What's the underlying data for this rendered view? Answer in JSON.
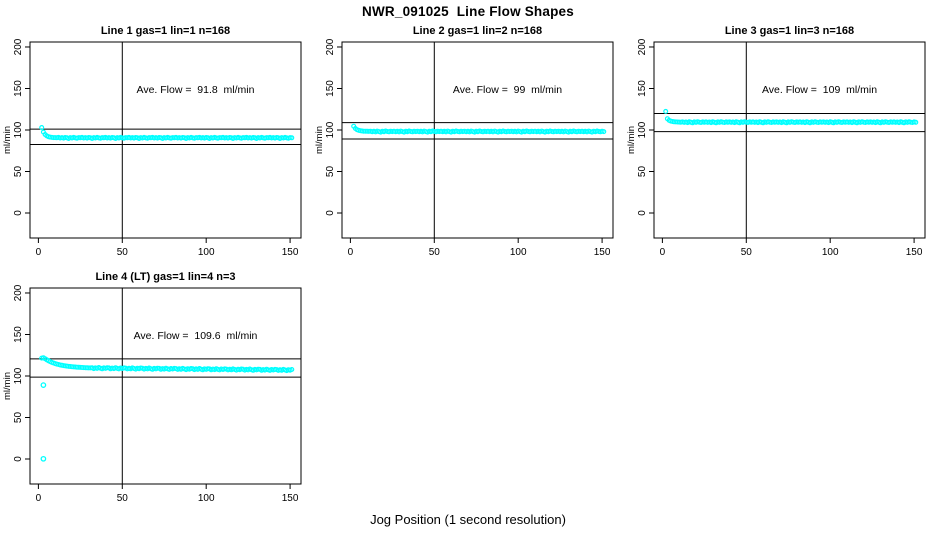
{
  "figure": {
    "title": "NWR_091025  Line Flow Shapes",
    "xlabel": "Jog Position (1 second resolution)"
  },
  "colors": {
    "points": "#00FFFF",
    "axis": "#000000",
    "background": "#FFFFFF"
  },
  "chart_data": [
    {
      "type": "scatter",
      "title": "Line 1 gas=1 lin=1 n=168",
      "annotation": "Ave. Flow =  91.8  ml/min",
      "ave_flow_ml_min": 91.8,
      "n": 168,
      "ylabel": "ml/min",
      "xticks": [
        0,
        50,
        100,
        150
      ],
      "yticks": [
        0,
        50,
        100,
        150,
        200
      ],
      "xlim": [
        -5,
        156.5
      ],
      "ylim": [
        -30.1,
        206
      ],
      "vline_x": 50,
      "hlines": [
        101.0,
        82.6
      ],
      "points": {
        "x_start": 2,
        "x_step": 1,
        "values": [
          103.0,
          97.6,
          94.6,
          92.9,
          91.9,
          91.4,
          91.1,
          90.9,
          90.8,
          90.7,
          91.1,
          90.3,
          90.8,
          90.2,
          91.0,
          90.6,
          89.8,
          90.9,
          90.4,
          91.1,
          90.5,
          90.1,
          90.8,
          90.6,
          91.1,
          90.3,
          90.8,
          90.2,
          91.0,
          90.6,
          89.8,
          90.9,
          90.4,
          91.1,
          90.5,
          90.1,
          90.8,
          90.6,
          91.1,
          90.3,
          90.8,
          90.2,
          91.0,
          90.6,
          89.8,
          90.9,
          90.4,
          91.1,
          90.5,
          90.1,
          90.8,
          90.6,
          91.1,
          90.3,
          90.8,
          90.2,
          91.0,
          90.6,
          89.8,
          90.9,
          90.4,
          91.1,
          90.5,
          90.1,
          90.8,
          90.6,
          91.1,
          90.3,
          90.8,
          90.2,
          91.0,
          90.6,
          89.8,
          90.9,
          90.4,
          91.1,
          90.5,
          90.1,
          90.8,
          90.6,
          91.1,
          90.3,
          90.8,
          90.2,
          91.0,
          90.6,
          89.8,
          90.9,
          90.4,
          91.1,
          90.5,
          90.1,
          90.8,
          90.6,
          91.1,
          90.3,
          90.8,
          90.2,
          91.0,
          90.6,
          89.8,
          90.9,
          90.4,
          91.1,
          90.5,
          90.1,
          90.8,
          90.6,
          91.1,
          90.3,
          90.8,
          90.2,
          91.0,
          90.6,
          89.8,
          90.9,
          90.4,
          91.1,
          90.5,
          90.1,
          90.8,
          90.6,
          91.1,
          90.3,
          90.8,
          90.2,
          91.0,
          90.6,
          89.8,
          90.9,
          90.4,
          91.1,
          90.5,
          90.1,
          90.8,
          90.6,
          91.1,
          90.3,
          90.8,
          90.2,
          91.0,
          90.6,
          89.8,
          90.9,
          90.4,
          91.1,
          90.5,
          90.1,
          90.8,
          90.6
        ]
      },
      "outliers": []
    },
    {
      "type": "scatter",
      "title": "Line 2 gas=1 lin=2 n=168",
      "annotation": "Ave. Flow =  99  ml/min",
      "ave_flow_ml_min": 99,
      "n": 168,
      "ylabel": "ml/min",
      "xticks": [
        0,
        50,
        100,
        150
      ],
      "yticks": [
        0,
        50,
        100,
        150,
        200
      ],
      "xlim": [
        -5,
        156.5
      ],
      "ylim": [
        -30.1,
        206
      ],
      "vline_x": 50,
      "hlines": [
        108.9,
        89.1
      ],
      "points": {
        "x_start": 2,
        "x_step": 1,
        "values": [
          104.6,
          101.8,
          100.3,
          99.5,
          99.1,
          98.8,
          98.6,
          98.5,
          98.4,
          98.3,
          98.6,
          97.9,
          98.4,
          97.7,
          98.7,
          98.1,
          97.5,
          98.5,
          98.0,
          98.8,
          98.2,
          97.8,
          98.5,
          98.1,
          98.6,
          97.9,
          98.4,
          97.7,
          98.7,
          98.1,
          97.5,
          98.5,
          98.0,
          98.8,
          98.2,
          97.8,
          98.5,
          98.1,
          98.6,
          97.9,
          98.4,
          97.7,
          98.7,
          98.1,
          97.5,
          98.5,
          98.0,
          98.8,
          98.2,
          97.8,
          98.5,
          98.1,
          98.6,
          97.9,
          98.4,
          97.7,
          98.7,
          98.1,
          97.5,
          98.5,
          98.0,
          98.8,
          98.2,
          97.8,
          98.5,
          98.1,
          98.6,
          97.9,
          98.4,
          97.7,
          98.7,
          98.1,
          97.5,
          98.5,
          98.0,
          98.8,
          98.2,
          97.8,
          98.5,
          98.1,
          98.6,
          97.9,
          98.4,
          97.7,
          98.7,
          98.1,
          97.5,
          98.5,
          98.0,
          98.8,
          98.2,
          97.8,
          98.5,
          98.1,
          98.6,
          97.9,
          98.4,
          97.7,
          98.7,
          98.1,
          97.5,
          98.5,
          98.0,
          98.8,
          98.2,
          97.8,
          98.5,
          98.1,
          98.6,
          97.9,
          98.4,
          97.7,
          98.7,
          98.1,
          97.5,
          98.5,
          98.0,
          98.8,
          98.2,
          97.8,
          98.5,
          98.1,
          98.6,
          97.9,
          98.4,
          97.7,
          98.7,
          98.1,
          97.5,
          98.5,
          98.0,
          98.8,
          98.2,
          97.8,
          98.5,
          98.1,
          98.6,
          97.9,
          98.4,
          97.7,
          98.7,
          98.1,
          97.5,
          98.5,
          98.0,
          98.8,
          98.2,
          97.8,
          98.5,
          98.1
        ]
      },
      "outliers": []
    },
    {
      "type": "scatter",
      "title": "Line 3 gas=1 lin=3 n=168",
      "annotation": "Ave. Flow =  109  ml/min",
      "ave_flow_ml_min": 109,
      "n": 168,
      "ylabel": "ml/min",
      "xticks": [
        0,
        50,
        100,
        150
      ],
      "yticks": [
        0,
        50,
        100,
        150,
        200
      ],
      "xlim": [
        -5,
        156.5
      ],
      "ylim": [
        -30.1,
        206
      ],
      "vline_x": 50,
      "hlines": [
        119.9,
        98.1
      ],
      "points": {
        "x_start": 2,
        "x_step": 1,
        "values": [
          122.4,
          113.6,
          111.6,
          110.7,
          110.2,
          109.9,
          109.7,
          109.6,
          109.5,
          109.4,
          109.8,
          109.1,
          109.6,
          108.9,
          109.9,
          109.3,
          108.7,
          109.7,
          109.2,
          110.0,
          109.4,
          109.0,
          109.7,
          109.3,
          109.8,
          109.1,
          109.6,
          108.9,
          109.9,
          109.3,
          108.7,
          109.7,
          109.2,
          110.0,
          109.4,
          109.0,
          109.7,
          109.3,
          109.8,
          109.1,
          109.6,
          108.9,
          109.9,
          109.3,
          108.7,
          109.7,
          109.2,
          110.0,
          109.4,
          109.0,
          109.7,
          109.3,
          109.8,
          109.1,
          109.6,
          108.9,
          109.9,
          109.3,
          108.7,
          109.7,
          109.2,
          110.0,
          109.4,
          109.0,
          109.7,
          109.3,
          109.8,
          109.1,
          109.6,
          108.9,
          109.9,
          109.3,
          108.7,
          109.7,
          109.2,
          110.0,
          109.4,
          109.0,
          109.7,
          109.3,
          109.8,
          109.1,
          109.6,
          108.9,
          109.9,
          109.3,
          108.7,
          109.7,
          109.2,
          110.0,
          109.4,
          109.0,
          109.7,
          109.3,
          109.8,
          109.1,
          109.6,
          108.9,
          109.9,
          109.3,
          108.7,
          109.7,
          109.2,
          110.0,
          109.4,
          109.0,
          109.7,
          109.3,
          109.8,
          109.1,
          109.6,
          108.9,
          109.9,
          109.3,
          108.7,
          109.7,
          109.2,
          110.0,
          109.4,
          109.0,
          109.7,
          109.3,
          109.8,
          109.1,
          109.6,
          108.9,
          109.9,
          109.3,
          108.7,
          109.7,
          109.2,
          110.0,
          109.4,
          109.0,
          109.7,
          109.3,
          109.8,
          109.1,
          109.6,
          108.9,
          109.9,
          109.3,
          108.7,
          109.7,
          109.2,
          110.0,
          109.4,
          109.0,
          109.7,
          109.3
        ]
      },
      "outliers": []
    },
    {
      "type": "scatter",
      "title": "Line 4 (LT) gas=1 lin=4 n=3",
      "annotation": "Ave. Flow =  109.6  ml/min",
      "ave_flow_ml_min": 109.6,
      "n": 3,
      "ylabel": "ml/min",
      "xticks": [
        0,
        50,
        100,
        150
      ],
      "yticks": [
        0,
        50,
        100,
        150,
        200
      ],
      "xlim": [
        -5,
        156.5
      ],
      "ylim": [
        -30.1,
        206
      ],
      "vline_x": 50,
      "hlines": [
        120.6,
        98.6
      ],
      "points": {
        "x_start": 2,
        "x_step": 1,
        "values": [
          121.5,
          122.0,
          120.8,
          119.5,
          118.3,
          117.3,
          116.4,
          115.6,
          114.9,
          114.3,
          113.8,
          113.3,
          112.9,
          112.5,
          112.2,
          111.9,
          111.6,
          111.4,
          111.2,
          111.0,
          110.8,
          110.6,
          110.5,
          110.3,
          110.2,
          110.1,
          110.0,
          109.9,
          109.8,
          109.7,
          109.9,
          108.9,
          109.7,
          109.1,
          110.2,
          109.4,
          108.7,
          109.8,
          109.2,
          110.0,
          109.7,
          108.7,
          109.5,
          108.9,
          110.0,
          109.2,
          108.5,
          109.6,
          109.0,
          109.8,
          109.5,
          108.5,
          109.3,
          108.7,
          109.8,
          109.0,
          108.3,
          109.4,
          108.8,
          109.6,
          109.3,
          108.3,
          109.1,
          108.5,
          109.6,
          108.8,
          108.1,
          109.2,
          108.6,
          109.4,
          109.1,
          108.1,
          108.9,
          108.3,
          109.4,
          108.6,
          107.9,
          109.0,
          108.4,
          109.2,
          108.9,
          107.9,
          108.7,
          108.1,
          109.2,
          108.4,
          107.7,
          108.8,
          108.2,
          109.0,
          108.7,
          107.7,
          108.5,
          107.9,
          109.0,
          108.2,
          107.5,
          108.6,
          108.0,
          108.8,
          108.5,
          107.5,
          108.3,
          107.7,
          108.8,
          108.0,
          107.3,
          108.4,
          107.8,
          108.6,
          108.3,
          107.3,
          108.1,
          107.5,
          108.6,
          107.8,
          107.1,
          108.2,
          107.6,
          108.4,
          108.1,
          107.1,
          107.9,
          107.3,
          108.4,
          107.6,
          106.9,
          108.0,
          107.4,
          108.2,
          107.9,
          106.9,
          107.7,
          107.1,
          108.2,
          107.4,
          106.7,
          107.8,
          107.2,
          108.0,
          107.7,
          106.7,
          107.5,
          106.9,
          108.0,
          107.2,
          106.5,
          107.6,
          107.0,
          107.8
        ]
      },
      "outliers": [
        [
          3,
          89
        ],
        [
          3,
          0.3
        ]
      ]
    }
  ]
}
